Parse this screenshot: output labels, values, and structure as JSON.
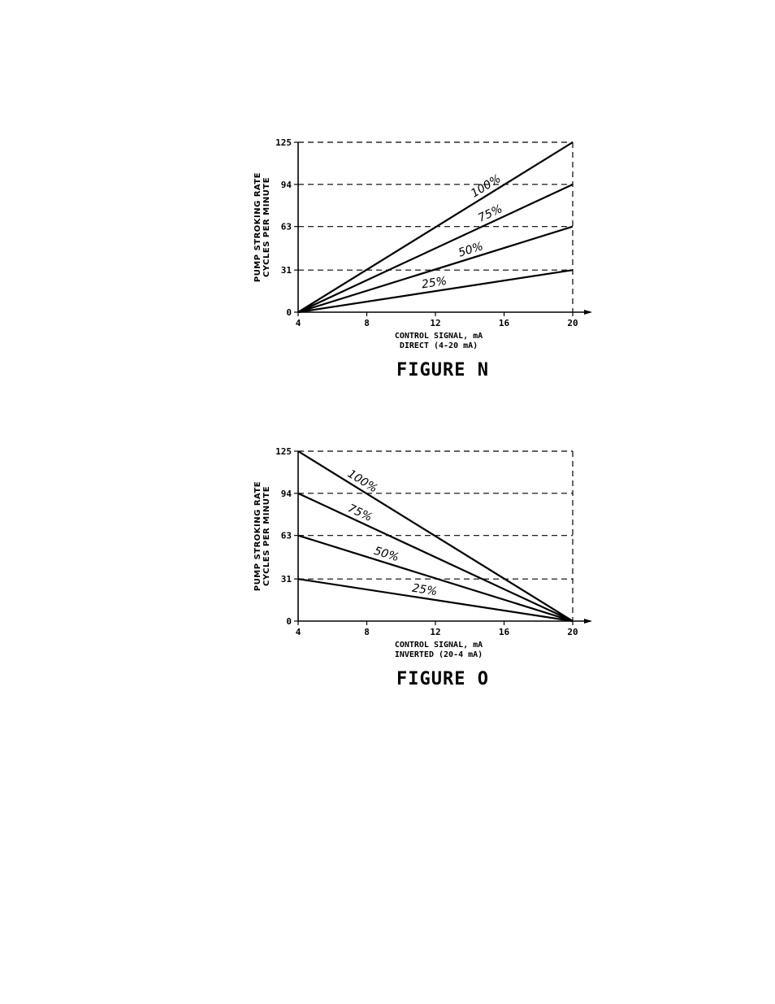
{
  "chart_data": [
    {
      "id": "fig-n",
      "type": "line",
      "title": "FIGURE N",
      "xlabel": "CONTROL SIGNAL, mA",
      "xlabel2": "DIRECT (4-20 mA)",
      "ylabel": "PUMP STROKING RATE",
      "ylabel2": "CYCLES PER MINUTE",
      "xlim": [
        4,
        20
      ],
      "ylim": [
        0,
        125
      ],
      "x_ticks": [
        "4",
        "8",
        "12",
        "16",
        "20"
      ],
      "y_ticks": [
        "0",
        "31",
        "63",
        "94",
        "125"
      ],
      "grid": "dashed",
      "series": [
        {
          "name": "100%",
          "x": [
            4,
            20
          ],
          "y": [
            0,
            125
          ]
        },
        {
          "name": "75%",
          "x": [
            4,
            20
          ],
          "y": [
            0,
            94
          ]
        },
        {
          "name": "50%",
          "x": [
            4,
            20
          ],
          "y": [
            0,
            63
          ]
        },
        {
          "name": "25%",
          "x": [
            4,
            20
          ],
          "y": [
            0,
            31
          ]
        }
      ],
      "labels_at_x": [
        15.2,
        15.4,
        14.2,
        12
      ]
    },
    {
      "id": "fig-o",
      "type": "line",
      "title": "FIGURE O",
      "xlabel": "CONTROL SIGNAL, mA",
      "xlabel2": "INVERTED (20-4 mA)",
      "ylabel": "PUMP STROKING RATE",
      "ylabel2": "CYCLES PER MINUTE",
      "xlim": [
        4,
        20
      ],
      "ylim": [
        0,
        125
      ],
      "x_ticks": [
        "4",
        "8",
        "12",
        "16",
        "20"
      ],
      "y_ticks": [
        "0",
        "31",
        "63",
        "94",
        "125"
      ],
      "grid": "dashed",
      "series": [
        {
          "name": "100%",
          "x": [
            4,
            20
          ],
          "y": [
            125,
            0
          ]
        },
        {
          "name": "75%",
          "x": [
            4,
            20
          ],
          "y": [
            94,
            0
          ]
        },
        {
          "name": "50%",
          "x": [
            4,
            20
          ],
          "y": [
            63,
            0
          ]
        },
        {
          "name": "25%",
          "x": [
            4,
            20
          ],
          "y": [
            31,
            0
          ]
        }
      ],
      "labels_at_x": [
        7.5,
        7.4,
        9,
        11.3
      ]
    }
  ]
}
